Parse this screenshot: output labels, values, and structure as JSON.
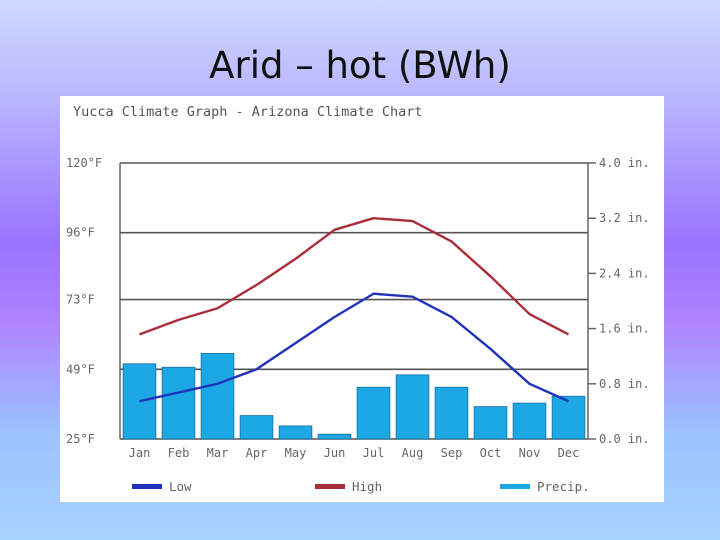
{
  "slide": {
    "title": "Arid – hot (BWh)"
  },
  "chart_data": {
    "type": "bar+line",
    "title": "Yucca Climate Graph - Arizona Climate Chart",
    "categories": [
      "Jan",
      "Feb",
      "Mar",
      "Apr",
      "May",
      "Jun",
      "Jul",
      "Aug",
      "Sep",
      "Oct",
      "Nov",
      "Dec"
    ],
    "left_axis": {
      "unit": "°F",
      "ticks": [
        "120°F",
        "96°F",
        "73°F",
        "49°F",
        "25°F"
      ],
      "tick_values": [
        120,
        96,
        73,
        49,
        25
      ],
      "range": [
        25,
        120
      ]
    },
    "right_axis": {
      "unit": "in.",
      "ticks": [
        "4.0 in.",
        "3.2 in.",
        "2.4 in.",
        "1.6 in.",
        "0.8 in.",
        "0.0 in."
      ],
      "tick_values": [
        4.0,
        3.2,
        2.4,
        1.6,
        0.8,
        0.0
      ],
      "range": [
        0,
        4.0
      ]
    },
    "series": [
      {
        "name": "Low",
        "kind": "line",
        "axis": "left",
        "color": "#2233bb",
        "values": [
          38,
          41,
          44,
          49,
          58,
          67,
          75,
          74,
          67,
          56,
          44,
          38
        ]
      },
      {
        "name": "High",
        "kind": "line",
        "axis": "left",
        "color": "#aa2e3a",
        "values": [
          61,
          66,
          70,
          78,
          87,
          97,
          101,
          100,
          93,
          81,
          68,
          61
        ]
      },
      {
        "name": "Precip.",
        "kind": "bar",
        "axis": "right",
        "color": "#1ba8e4",
        "values": [
          1.09,
          1.04,
          1.24,
          0.34,
          0.19,
          0.07,
          0.75,
          0.93,
          0.75,
          0.47,
          0.52,
          0.62
        ]
      }
    ],
    "legend": [
      "Low",
      "High",
      "Precip."
    ],
    "legend_position": "bottom"
  }
}
